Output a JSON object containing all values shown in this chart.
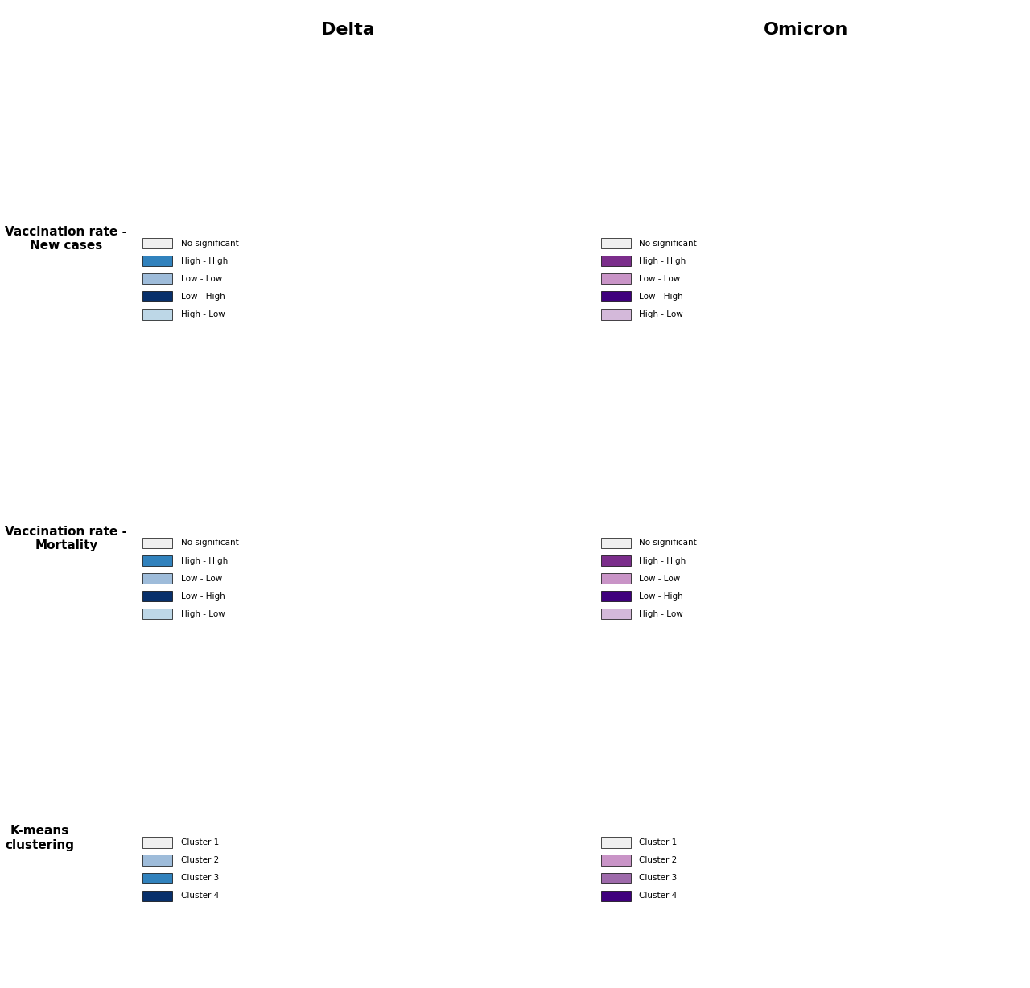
{
  "title_delta": "Delta",
  "title_omicron": "Omicron",
  "row_labels": [
    "Vaccination rate -\nNew cases",
    "Vaccination rate -\nMortality",
    "K-means\nclustering"
  ],
  "legend_bivariate_delta": {
    "labels": [
      "No significant",
      "High - High",
      "Low - Low",
      "Low - High",
      "High - Low"
    ],
    "colors": [
      "#f0f0f0",
      "#3182bd",
      "#9ebcda",
      "#08306b",
      "#bdd7e7"
    ]
  },
  "legend_bivariate_omicron": {
    "labels": [
      "No significant",
      "High - High",
      "Low - Low",
      "Low - High",
      "High - Low"
    ],
    "colors": [
      "#f0f0f0",
      "#7b2d8b",
      "#c994c7",
      "#3f007d",
      "#d4b9da"
    ]
  },
  "legend_kmeans_delta": {
    "labels": [
      "Cluster 1",
      "Cluster 2",
      "Cluster 3",
      "Cluster 4"
    ],
    "colors": [
      "#f0f0f0",
      "#9ebcda",
      "#3182bd",
      "#08306b"
    ]
  },
  "legend_kmeans_omicron": {
    "labels": [
      "Cluster 1",
      "Cluster 2",
      "Cluster 3",
      "Cluster 4"
    ],
    "colors": [
      "#f0f0f0",
      "#c994c7",
      "#9e6aab",
      "#3f007d"
    ]
  },
  "background_color": "#ffffff",
  "map_background": "#ffffff",
  "county_border_color": "#888888",
  "state_border_color": "#000000",
  "title_fontsize": 16,
  "label_fontsize": 11,
  "legend_fontsize": 9
}
